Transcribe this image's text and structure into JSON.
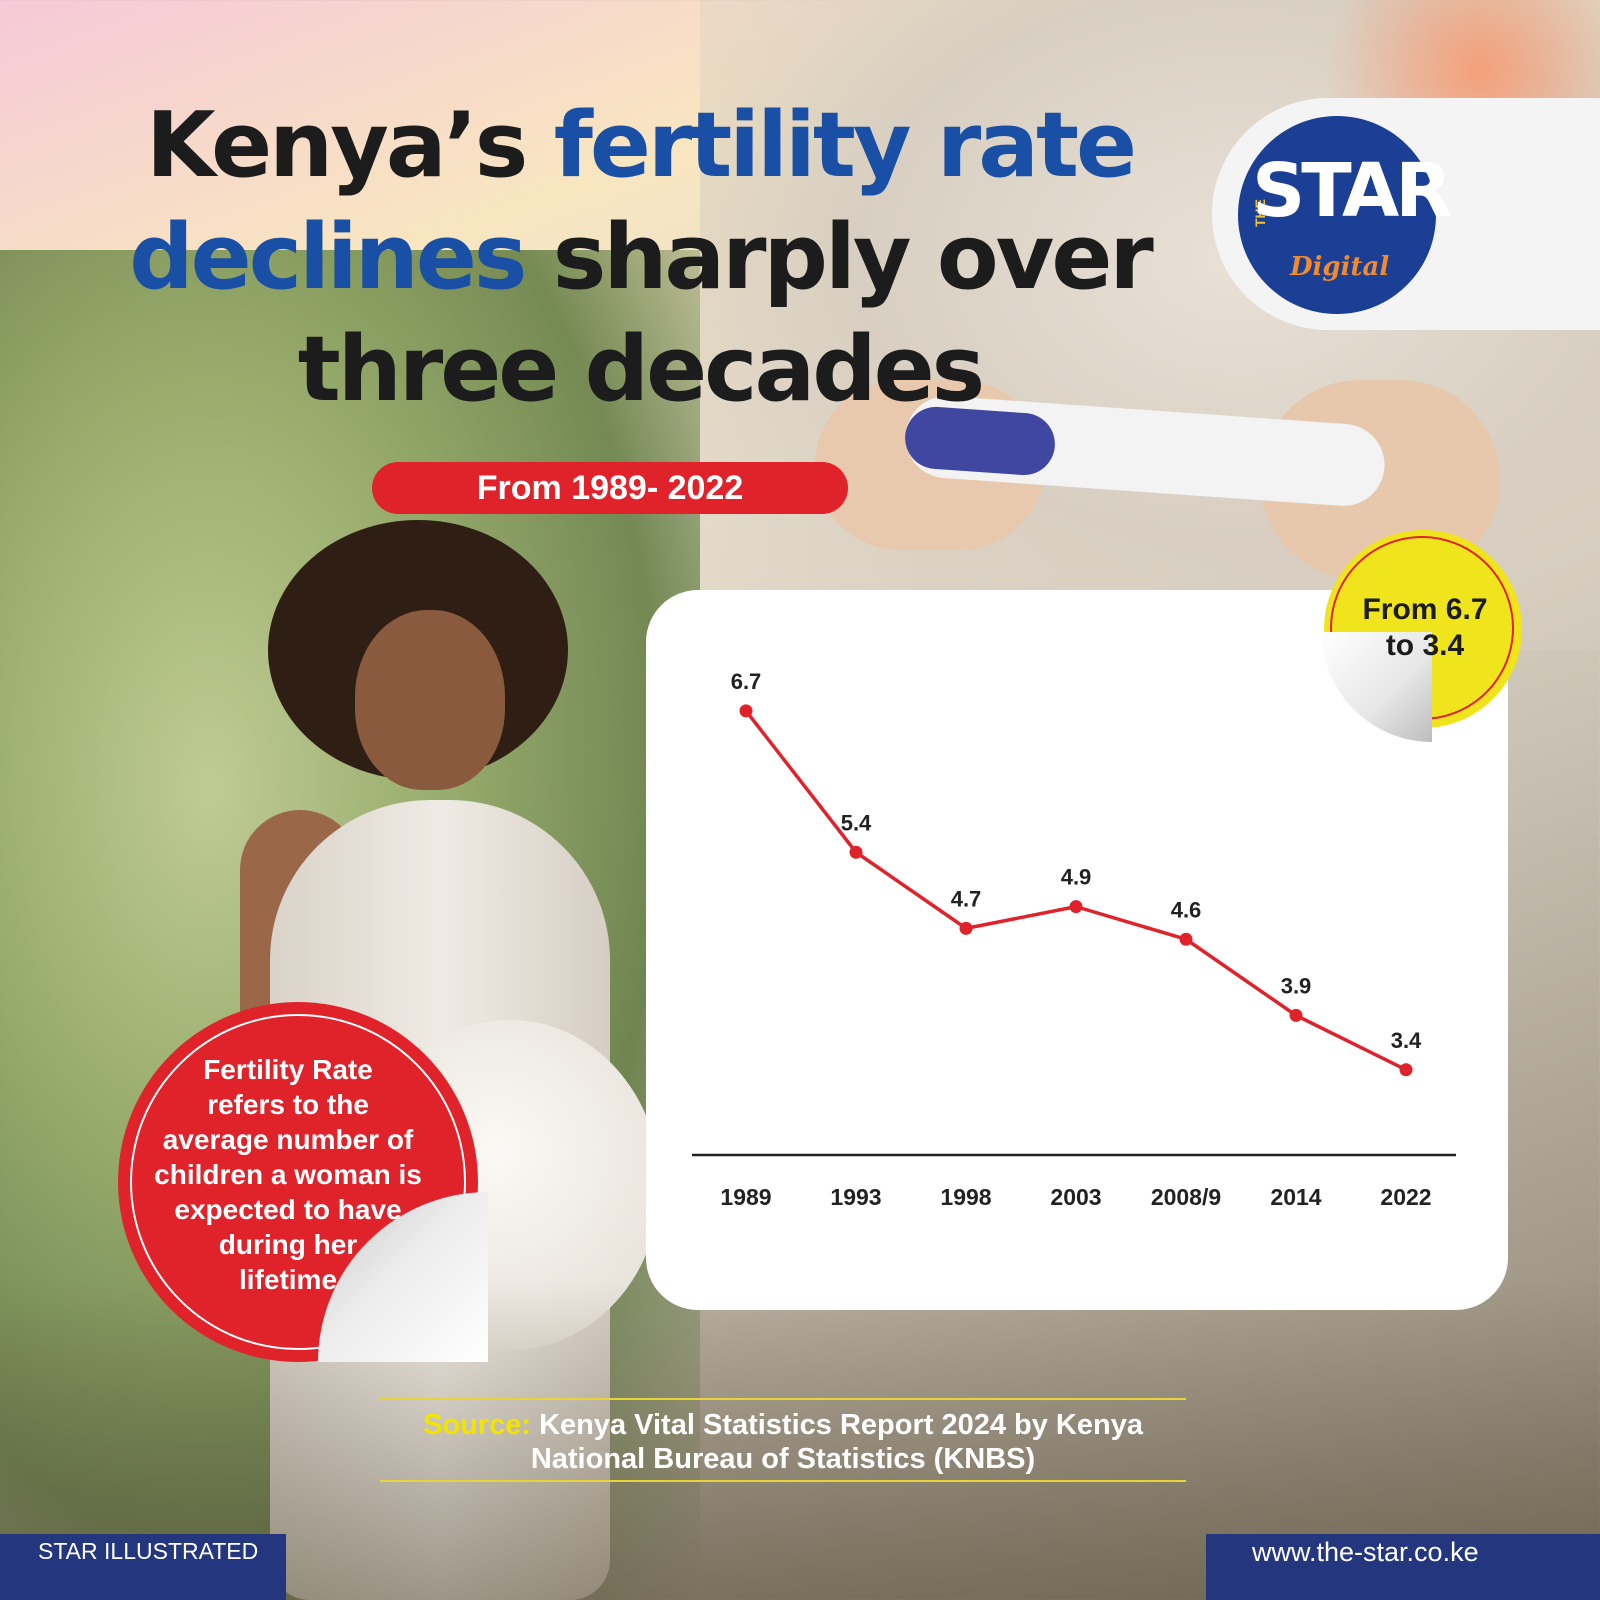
{
  "title": {
    "part1": "Kenya’s ",
    "part2": "fertility rate",
    "part3": "declines",
    "part4": " sharply over",
    "part5": "three decades"
  },
  "logo": {
    "the": "THE",
    "star": "STAR",
    "digital": "Digital"
  },
  "range_label": "From 1989- 2022",
  "callout": {
    "line1": "From 6.7",
    "line2": "to 3.4"
  },
  "definition": {
    "lines": [
      "Fertility Rate",
      "refers to the",
      "average number of",
      "children a woman is",
      "expected to have",
      "during her",
      "lifetime"
    ]
  },
  "source": {
    "label": "Source:",
    "text": " Kenya Vital Statistics Report 2024 by Kenya National Bureau of Statistics (KNBS)"
  },
  "footer": {
    "left": "STAR ILLUSTRATED",
    "right": "www.the-star.co.ke"
  },
  "colors": {
    "accent_blue": "#1a4fa6",
    "accent_red": "#e0232a",
    "badge_yellow": "#f0e41c",
    "footer_navy": "#24377e"
  },
  "chart_data": {
    "type": "line",
    "categories": [
      "1989",
      "1993",
      "1998",
      "2003",
      "2008/9",
      "2014",
      "2022"
    ],
    "values": [
      6.7,
      5.4,
      4.7,
      4.9,
      4.6,
      3.9,
      3.4
    ],
    "data_labels": [
      "6.7",
      "5.4",
      "4.7",
      "4.9",
      "4.6",
      "3.9",
      "3.4"
    ],
    "line_color": "#e0232a",
    "grid": false,
    "ylim": [
      2.8,
      6.8
    ]
  }
}
